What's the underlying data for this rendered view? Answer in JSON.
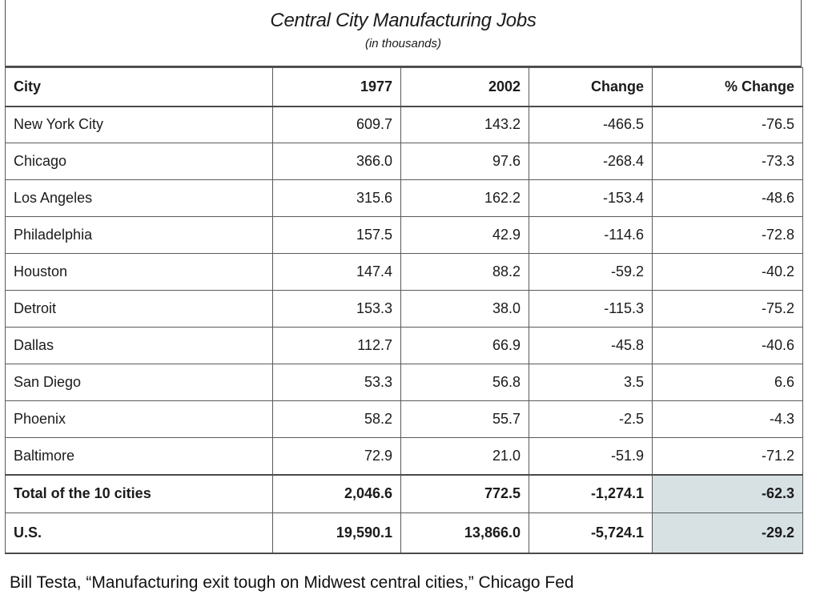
{
  "table": {
    "title": "Central City Manufacturing Jobs",
    "subtitle": "(in thousands)",
    "headers": {
      "city": "City",
      "y1977": "1977",
      "y2002": "2002",
      "change": "Change",
      "pct_change": "% Change"
    },
    "rows": [
      {
        "city": "New York City",
        "y1977": "609.7",
        "y2002": "143.2",
        "change": "-466.5",
        "pct": "-76.5"
      },
      {
        "city": "Chicago",
        "y1977": "366.0",
        "y2002": "97.6",
        "change": "-268.4",
        "pct": "-73.3"
      },
      {
        "city": "Los Angeles",
        "y1977": "315.6",
        "y2002": "162.2",
        "change": "-153.4",
        "pct": "-48.6"
      },
      {
        "city": "Philadelphia",
        "y1977": "157.5",
        "y2002": "42.9",
        "change": "-114.6",
        "pct": "-72.8"
      },
      {
        "city": "Houston",
        "y1977": "147.4",
        "y2002": "88.2",
        "change": "-59.2",
        "pct": "-40.2"
      },
      {
        "city": "Detroit",
        "y1977": "153.3",
        "y2002": "38.0",
        "change": "-115.3",
        "pct": "-75.2"
      },
      {
        "city": "Dallas",
        "y1977": "112.7",
        "y2002": "66.9",
        "change": "-45.8",
        "pct": "-40.6"
      },
      {
        "city": "San Diego",
        "y1977": "53.3",
        "y2002": "56.8",
        "change": "3.5",
        "pct": "6.6"
      },
      {
        "city": "Phoenix",
        "y1977": "58.2",
        "y2002": "55.7",
        "change": "-2.5",
        "pct": "-4.3"
      },
      {
        "city": "Baltimore",
        "y1977": "72.9",
        "y2002": "21.0",
        "change": "-51.9",
        "pct": "-71.2"
      }
    ],
    "total": {
      "city": "Total of the 10 cities",
      "y1977": "2,046.6",
      "y2002": "772.5",
      "change": "-1,274.1",
      "pct": "-62.3"
    },
    "us": {
      "city": "U.S.",
      "y1977": "19,590.1",
      "y2002": "13,866.0",
      "change": "-5,724.1",
      "pct": "-29.2"
    },
    "highlight_color": "#d7e1e3"
  },
  "citation": "Bill Testa, “Manufacturing exit tough on Midwest central cities,” Chicago Fed"
}
